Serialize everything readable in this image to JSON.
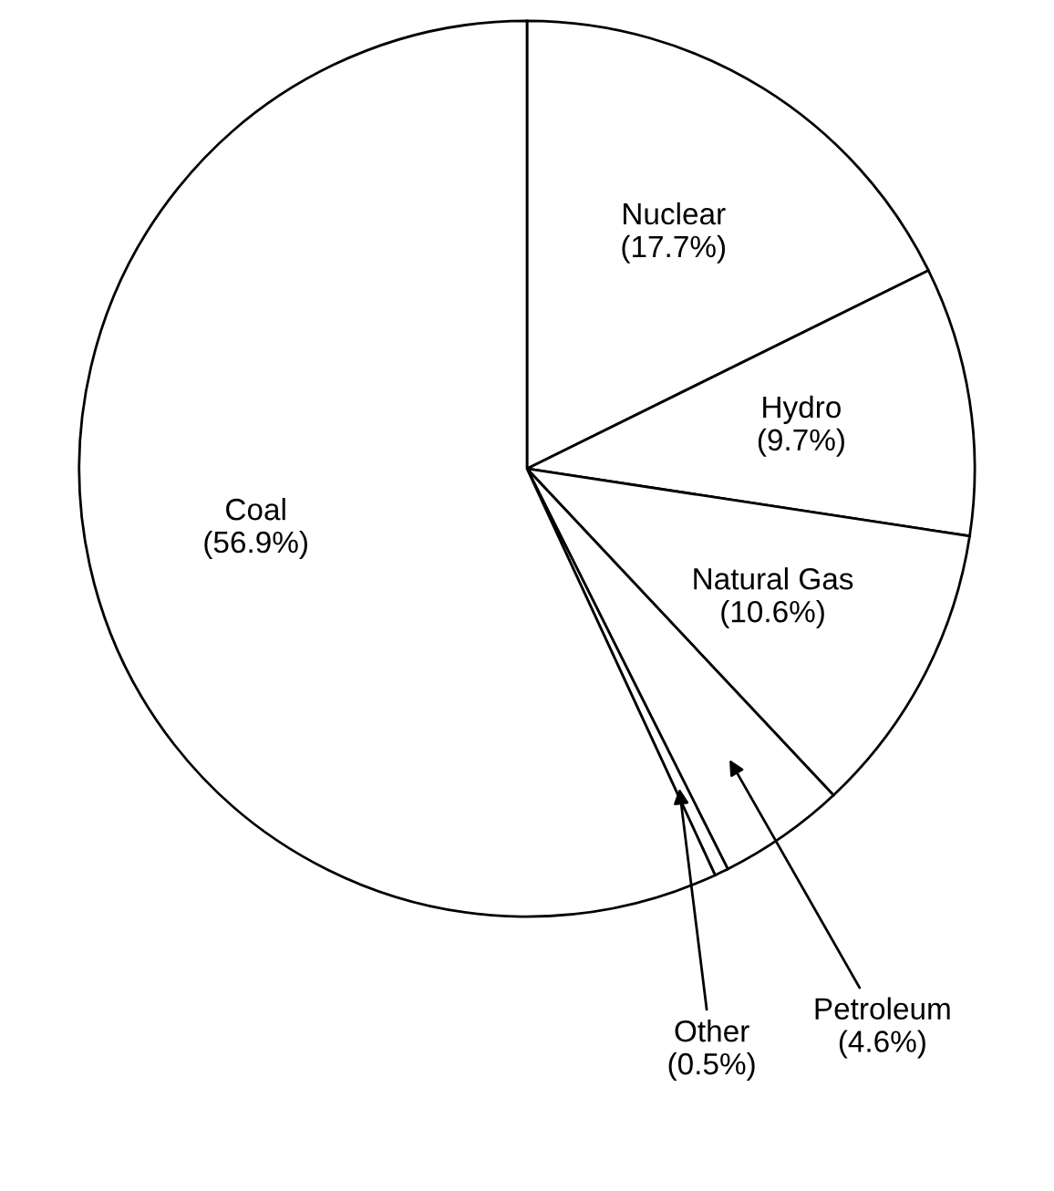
{
  "chart_data": {
    "type": "pie",
    "categories": [
      "Nuclear",
      "Hydro",
      "Natural Gas",
      "Petroleum",
      "Other",
      "Coal"
    ],
    "values": [
      17.7,
      9.7,
      10.6,
      4.6,
      0.5,
      56.9
    ],
    "value_labels": [
      "(17.7%)",
      "(9.7%)",
      "(10.6%)",
      "(4.6%)",
      "(0.5%)",
      "(56.9%)"
    ],
    "colors": [
      "#ffffff",
      "#ffffff",
      "#ffffff",
      "#ffffff",
      "#ffffff",
      "#ffffff"
    ],
    "legend": false
  }
}
